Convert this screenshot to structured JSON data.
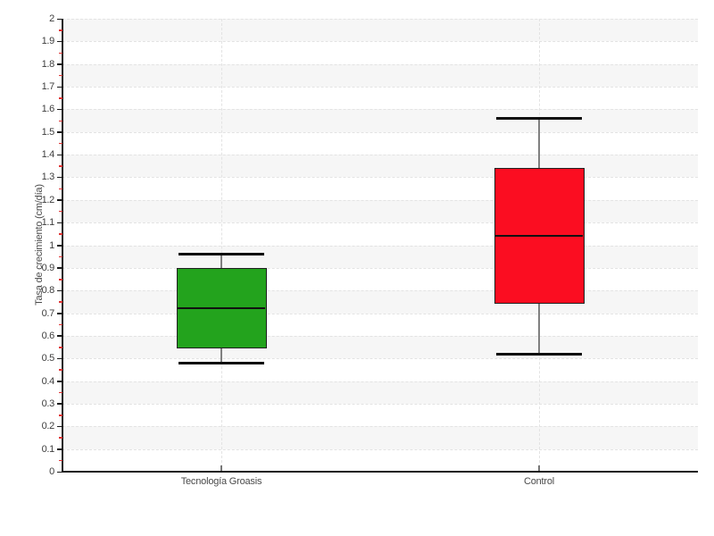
{
  "chart_data": {
    "type": "boxplot",
    "title": "",
    "xlabel": "",
    "ylabel": "Tasa de crecimiento (cm/día)",
    "ylim": [
      0,
      2
    ],
    "ytick_step": 0.1,
    "yminor_tick_step": 0.05,
    "grid": "dashed horizontal lines every 0.1, dashed vertical line at each category center, alternating shaded horizontal bands",
    "legend_position": "none",
    "categories": [
      "Tecnología Groasis",
      "Control"
    ],
    "series": [
      {
        "name": "Tecnología Groasis",
        "whisker_low": 0.48,
        "q1": 0.545,
        "median": 0.72,
        "q3": 0.9,
        "whisker_high": 0.96,
        "fill_color": "#23a31d"
      },
      {
        "name": "Control",
        "whisker_low": 0.52,
        "q1": 0.74,
        "median": 1.04,
        "q3": 1.34,
        "whisker_high": 1.56,
        "fill_color": "#fb0d21"
      }
    ],
    "colors": {
      "background": "#ffffff",
      "band_shaded": "#f6f6f6",
      "band_plain": "#ffffff",
      "gridline": "#e3e3e3",
      "axis": "#1a1a1a",
      "major_tick": "#1a1a1a",
      "minor_tick": "#e03131",
      "tick_label": "#3d3d3d",
      "axis_title": "#4a4a4a",
      "box_border": "#1f1f1f",
      "median": "#111111",
      "whisker_stem": "#808080",
      "whisker_cap": "#0d0d0d"
    }
  }
}
